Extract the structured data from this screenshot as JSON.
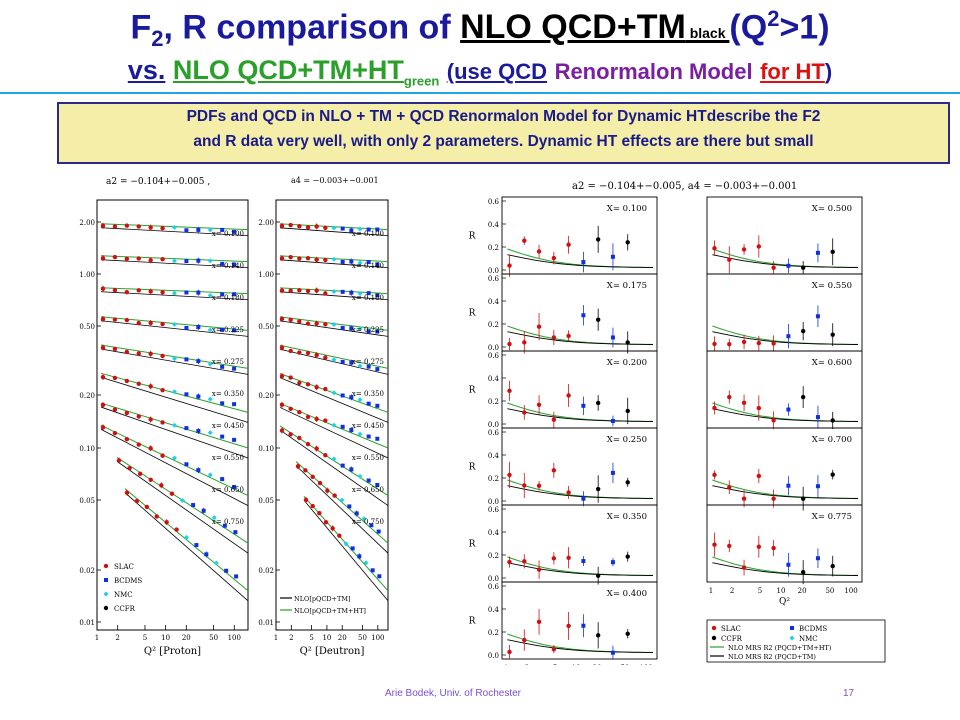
{
  "slide": {
    "title_part1": "F",
    "title_sub": "2",
    "title_part2": ", R comparison of ",
    "title_underlined": "NLO QCD+TM",
    "title_black_word": " black ",
    "title_paren_open": "(Q",
    "title_sup": "2",
    "title_paren_close": ">1)",
    "subtitle_vs": "vs.",
    "subtitle_green": "NLO QCD+TM+HT",
    "subtitle_green_sub": "green",
    "subtitle_use": "(use QCD",
    "subtitle_renorm": "Renormalon Model",
    "subtitle_forht": "for HT",
    "subtitle_close": ")",
    "box_line1": "PDFs and QCD in NLO  + TM + QCD Renormalon Model for Dynamic HTdescribe the F2",
    "box_line2": "and R data  very well, with only 2 parameters. Dynamic HT effects are there but small",
    "footer_author": "Arie Bodek, Univ. of Rochester",
    "footer_page": "17"
  },
  "colors": {
    "title_blue": "#1a1a9c",
    "green": "#2aa02a",
    "red": "#e01010",
    "slac": "#d01010",
    "bcdms": "#1030e0",
    "nmc": "#20d0e8",
    "ccfr": "#000000",
    "box_bg": "#f4eea8"
  },
  "chart_data": [
    {
      "type": "scatter",
      "name_label": "F2 proton",
      "fit_label": "a2 = −0.104+−0.005 ,",
      "xlabel": "Q² [Proton]",
      "xscale": "log",
      "xticks": [
        "1",
        "2",
        "5",
        "10",
        "20",
        "50",
        "100"
      ],
      "yticks": [
        "2.00",
        "1.00",
        "0.50",
        "0.20",
        "0.10",
        "0.05",
        "0.02",
        "0.01"
      ],
      "x_bins": [
        "x= 0.100",
        "x= 0.140",
        "x= 0.180",
        "x= 0.225",
        "x= 0.275",
        "x= 0.350",
        "x= 0.450",
        "x= 0.550",
        "x= 0.650",
        "x= 0.750"
      ],
      "legend": [
        "SLAC",
        "BCDMS",
        "NMC",
        "CCFR"
      ]
    },
    {
      "type": "scatter",
      "name_label": "F2 deuteron",
      "fit_label": "a4 = −0.003+−0.001",
      "xlabel": "Q² [Deutron]",
      "xscale": "log",
      "xticks": [
        "1",
        "2",
        "5",
        "10",
        "20",
        "50",
        "100"
      ],
      "yticks": [
        "2.00",
        "1.00",
        "0.50",
        "0.20",
        "0.10",
        "0.05",
        "0.02",
        "0.01"
      ],
      "x_bins": [
        "x= 0.100",
        "x= 0.140",
        "x= 0.180",
        "x= 0.225",
        "x= 0.275",
        "x= 0.350",
        "x= 0.450",
        "x= 0.550",
        "x= 0.650",
        "x= 0.750"
      ],
      "legend": [
        "NLO[pQCD+TM]",
        "NLO[pQCD+TM+HT]"
      ]
    },
    {
      "type": "scatter",
      "name_label": "R comparison",
      "fit_label": "a2 =   −0.104+−0.005,  a4 =   −0.003+−0.001",
      "ylabel": "R",
      "xlabel": "Q²",
      "xscale": "log",
      "ylim": [
        0.0,
        0.6
      ],
      "yticks": [
        "0.0",
        "0.2",
        "0.4",
        "0.6"
      ],
      "xticks": [
        "1",
        "2",
        "5",
        "10",
        "20",
        "50",
        "100"
      ],
      "panels": [
        {
          "label": "X= 0.100",
          "col": 0,
          "row": 0
        },
        {
          "label": "X= 0.175",
          "col": 0,
          "row": 1
        },
        {
          "label": "X= 0.200",
          "col": 0,
          "row": 2
        },
        {
          "label": "X= 0.250",
          "col": 0,
          "row": 3
        },
        {
          "label": "X= 0.350",
          "col": 0,
          "row": 4
        },
        {
          "label": "X= 0.400",
          "col": 0,
          "row": 5
        },
        {
          "label": "X= 0.500",
          "col": 1,
          "row": 0
        },
        {
          "label": "X= 0.550",
          "col": 1,
          "row": 1
        },
        {
          "label": "X= 0.600",
          "col": 1,
          "row": 2
        },
        {
          "label": "X= 0.700",
          "col": 1,
          "row": 3
        },
        {
          "label": "X= 0.775",
          "col": 1,
          "row": 4
        }
      ],
      "legend": [
        "SLAC",
        "BCDMS",
        "CCFR",
        "NMC",
        "NLO MRS R2 (PQCD+TM+HT)",
        "NLO MRS R2 (PQCD+TM)"
      ]
    }
  ]
}
